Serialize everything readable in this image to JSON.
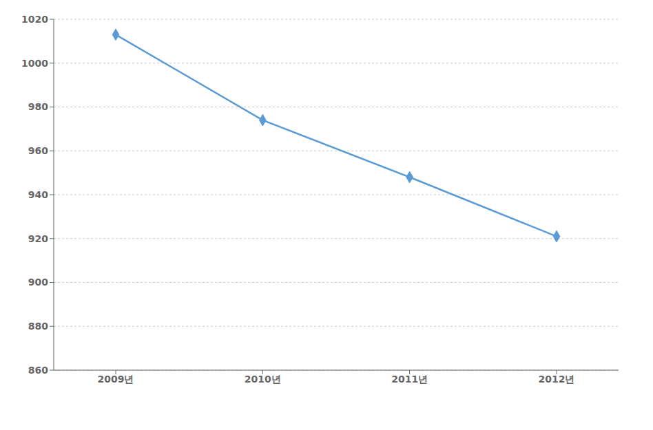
{
  "chart_data": {
    "type": "line",
    "categories": [
      "2009년",
      "2010년",
      "2011년",
      "2012년"
    ],
    "values": [
      1013,
      974,
      948,
      921
    ],
    "color": "#5B9BD5",
    "marker": "diamond",
    "ylim": [
      860,
      1020
    ],
    "yticks": [
      860,
      880,
      900,
      920,
      940,
      960,
      980,
      1000,
      1020
    ],
    "grid": true
  }
}
